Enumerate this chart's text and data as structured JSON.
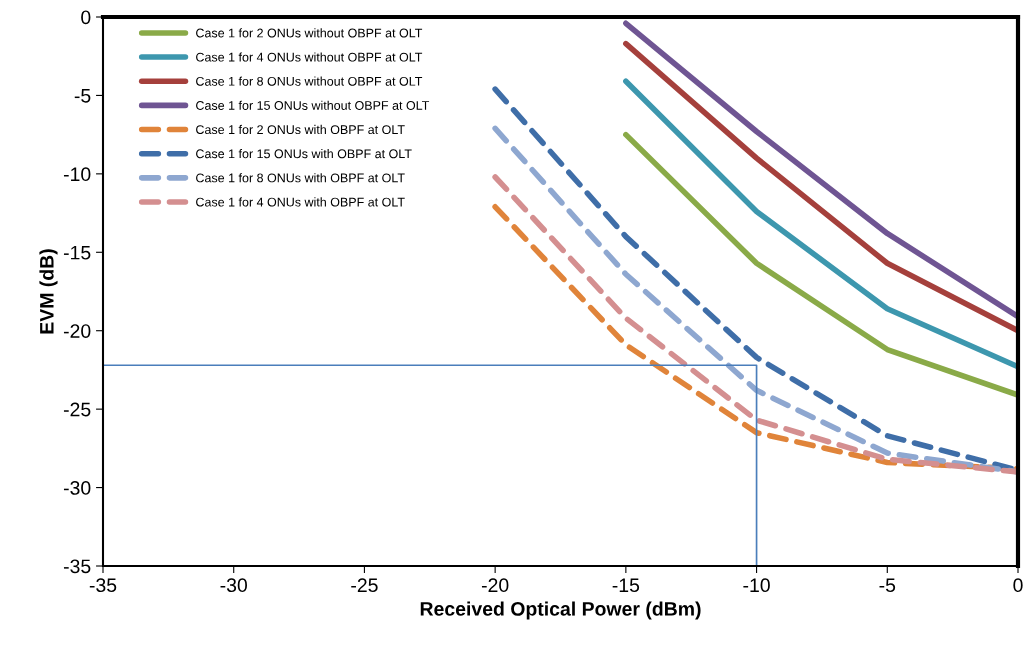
{
  "chart_data": {
    "type": "line",
    "xlabel": "Received Optical Power (dBm)",
    "ylabel": "EVM (dB)",
    "xlim": [
      -35,
      0
    ],
    "xticks": [
      -35,
      -30,
      -25,
      -20,
      -15,
      -10,
      -5,
      0
    ],
    "ylim": [
      -35,
      0
    ],
    "yticks": [
      -35,
      -30,
      -25,
      -20,
      -15,
      -10,
      -5,
      0
    ],
    "grid": false,
    "legend": "top left",
    "series": [
      {
        "name": "Case 1 for 2 ONUs without OBPF at OLT",
        "color": "#8aaa48",
        "line_style": "solid",
        "x": [
          -15,
          -10,
          -5,
          0
        ],
        "values": [
          -7.5,
          -15.7,
          -21.2,
          -24.1
        ]
      },
      {
        "name": "Case 1 for 4 ONUs without OBPF at OLT",
        "color": "#3d97ae",
        "line_style": "solid",
        "x": [
          -15,
          -10,
          -5,
          0
        ],
        "values": [
          -4.1,
          -12.4,
          -18.6,
          -22.3
        ]
      },
      {
        "name": "Case 1 for 8 ONUs without OBPF at OLT",
        "color": "#a5403c",
        "line_style": "solid",
        "x": [
          -15,
          -10,
          -5,
          0
        ],
        "values": [
          -1.7,
          -9.0,
          -15.7,
          -20.0
        ]
      },
      {
        "name": "Case 1 for 15 ONUs without OBPF at OLT",
        "color": "#6f5593",
        "line_style": "solid",
        "x": [
          -15,
          -10,
          -5,
          0
        ],
        "values": [
          -0.4,
          -7.3,
          -13.8,
          -19.1
        ]
      },
      {
        "name": "Case 1 for 2 ONUs with OBPF at OLT",
        "color": "#e0843a",
        "line_style": "dashed",
        "x": [
          -20,
          -15,
          -10,
          -5,
          0
        ],
        "values": [
          -12.1,
          -20.9,
          -26.5,
          -28.4,
          -28.8
        ]
      },
      {
        "name": "Case 1 for 15 ONUs with OBPF at OLT",
        "color": "#3f6ea8",
        "line_style": "dashed",
        "x": [
          -20,
          -15,
          -10,
          -5,
          0
        ],
        "values": [
          -4.6,
          -14.0,
          -21.7,
          -26.7,
          -28.9
        ]
      },
      {
        "name": "Case 1 for 8 ONUs with OBPF at OLT",
        "color": "#8ea7d0",
        "line_style": "dashed",
        "x": [
          -20,
          -15,
          -10,
          -5,
          0
        ],
        "values": [
          -7.1,
          -16.4,
          -23.8,
          -27.8,
          -29.0
        ]
      },
      {
        "name": "Case 1 for 4 ONUs with OBPF at OLT",
        "color": "#d48f90",
        "line_style": "dashed",
        "x": [
          -20,
          -15,
          -10,
          -5,
          0
        ],
        "values": [
          -10.2,
          -19.2,
          -25.7,
          -28.2,
          -29.0
        ]
      },
      {
        "color": "#4a7ebb",
        "line_style": "solid",
        "x": [
          -35,
          -10,
          -10
        ],
        "values": [
          -22.2,
          -22.2,
          -35
        ]
      }
    ]
  }
}
